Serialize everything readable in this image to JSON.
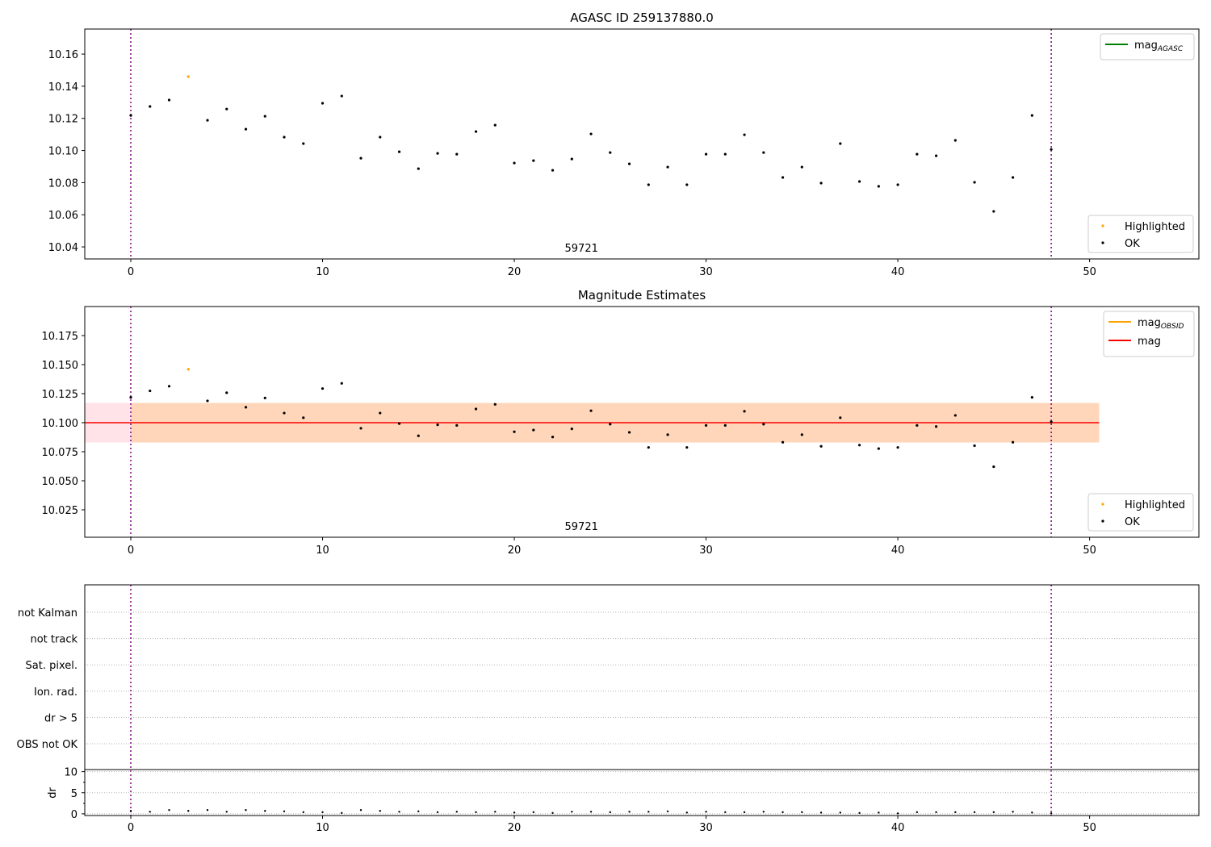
{
  "chart_data": [
    {
      "type": "scatter",
      "title": "AGASC ID 259137880.0",
      "xlim": [
        -2.4,
        55.7
      ],
      "ylim": [
        10.0325,
        10.1756
      ],
      "xticks": [
        0,
        10,
        20,
        30,
        40,
        50
      ],
      "yticks": [
        10.04,
        10.06,
        10.08,
        10.1,
        10.12,
        10.14,
        10.16
      ],
      "ytick_labels": [
        "10.04",
        "10.06",
        "10.08",
        "10.10",
        "10.12",
        "10.14",
        "10.16"
      ],
      "vlines": [
        0,
        48
      ],
      "annotation": "59721",
      "legend_lines": [
        {
          "label": "mag",
          "sub": "AGASC",
          "color": "#008000"
        }
      ],
      "legend_points": [
        {
          "label": "Highlighted",
          "color": "#ffa500"
        },
        {
          "label": "OK",
          "color": "#000000"
        }
      ],
      "highlighted": [
        3
      ],
      "y": [
        10.1218,
        10.1274,
        10.1314,
        10.146,
        10.1188,
        10.1258,
        10.1133,
        10.1213,
        10.1083,
        10.1043,
        10.1294,
        10.1339,
        10.0952,
        10.1083,
        10.0992,
        10.0887,
        10.0982,
        10.0977,
        10.1118,
        10.1158,
        10.0922,
        10.0937,
        10.0877,
        10.0947,
        10.1103,
        10.0987,
        10.0917,
        10.0787,
        10.0897,
        10.0787,
        10.0977,
        10.0977,
        10.1098,
        10.0987,
        10.0832,
        10.0897,
        10.0797,
        10.1043,
        10.0807,
        10.0777,
        10.0787,
        10.0977,
        10.0967,
        10.1063,
        10.0802,
        10.0621,
        10.0832,
        10.1218,
        10.1007
      ]
    },
    {
      "type": "scatter",
      "title": "Magnitude Estimates",
      "xlim": [
        -2.4,
        55.7
      ],
      "ylim": [
        10.0014,
        10.2
      ],
      "xticks": [
        0,
        10,
        20,
        30,
        40,
        50
      ],
      "yticks": [
        10.025,
        10.05,
        10.075,
        10.1,
        10.125,
        10.15,
        10.175
      ],
      "ytick_labels": [
        "10.025",
        "10.050",
        "10.075",
        "10.100",
        "10.125",
        "10.150",
        "10.175"
      ],
      "vlines": [
        0,
        48
      ],
      "annotation": "59721",
      "mean": 10.1,
      "band": [
        10.083,
        10.117
      ],
      "band_x": [
        -2.4,
        50.5
      ],
      "legend_lines": [
        {
          "label": "mag",
          "sub": "OBSID",
          "color": "#ffa500"
        },
        {
          "label": "mag",
          "sub": "",
          "color": "#ff0000"
        }
      ],
      "legend_points": [
        {
          "label": "Highlighted",
          "color": "#ffa500"
        },
        {
          "label": "OK",
          "color": "#000000"
        }
      ],
      "highlighted": [
        3
      ]
    },
    {
      "type": "scatter",
      "flags": [
        "OBS not OK",
        "dr > 5",
        "Ion. rad.",
        "Sat. pixel.",
        "not track",
        "not Kalman"
      ],
      "ylabel": "dr",
      "ylim": [
        -0.4,
        10.5
      ],
      "yticks": [
        0,
        5,
        10
      ],
      "ytick_labels": [
        "0",
        "5",
        "10"
      ],
      "xticks": [
        0,
        10,
        20,
        30,
        40,
        50
      ],
      "vlines": [
        0,
        48
      ],
      "dr": [
        0.7,
        0.5,
        0.9,
        0.7,
        0.9,
        0.5,
        0.9,
        0.7,
        0.6,
        0.4,
        0.4,
        0.2,
        0.9,
        0.7,
        0.5,
        0.6,
        0.4,
        0.5,
        0.4,
        0.5,
        0.3,
        0.4,
        0.2,
        0.5,
        0.5,
        0.4,
        0.5,
        0.5,
        0.6,
        0.3,
        0.5,
        0.4,
        0.4,
        0.5,
        0.4,
        0.4,
        0.3,
        0.3,
        0.2,
        0.3,
        0.1,
        0.4,
        0.4,
        0.4,
        0.4,
        0.4,
        0.5,
        0.3,
        0.1
      ]
    }
  ]
}
